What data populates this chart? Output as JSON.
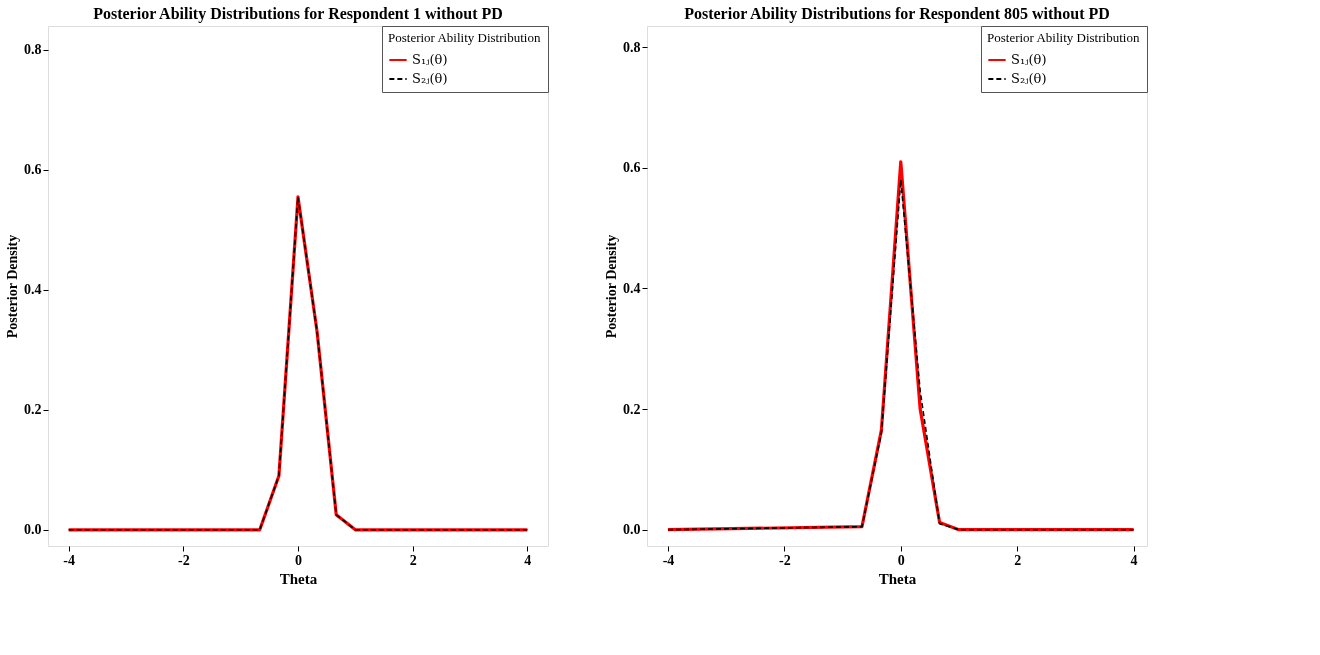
{
  "chart_data": [
    {
      "type": "line",
      "title": "Posterior Ability Distributions for Respondent 1 without PD",
      "xlabel": "Theta",
      "ylabel": "Posterior Density",
      "legend_title": "Posterior Ability Distribution",
      "legend": "top right",
      "grid": false,
      "x": [
        -4,
        -0.667,
        -0.333,
        0,
        0.333,
        0.667,
        1,
        4
      ],
      "series": [
        {
          "name": "S₁ⱼ(θ)",
          "color": "#ff0000",
          "line_style": "solid",
          "values": [
            0,
            0,
            0.09,
            0.555,
            0.33,
            0.025,
            0,
            0
          ]
        },
        {
          "name": "S₂ⱼ(θ)",
          "color": "#000000",
          "line_style": "dashed",
          "values": [
            0,
            0,
            0.09,
            0.555,
            0.33,
            0.025,
            0,
            0
          ]
        }
      ],
      "xlim": [
        -4.36,
        4.36
      ],
      "xticks": [
        -4,
        -2,
        0,
        2,
        4
      ],
      "ylim": [
        -0.027,
        0.84
      ],
      "yticks": [
        {
          "value": 0,
          "label": "0.0"
        },
        0.2,
        0.4,
        0.6,
        0.8
      ]
    },
    {
      "type": "line",
      "title": "Posterior Ability Distributions for Respondent 805 without PD",
      "xlabel": "Theta",
      "ylabel": "Posterior Density",
      "legend_title": "Posterior Ability Distribution",
      "legend": "top right",
      "grid": false,
      "x": [
        -4,
        -0.667,
        -0.333,
        0,
        0.333,
        0.667,
        1,
        4
      ],
      "series": [
        {
          "name": "S₁ⱼ(θ)",
          "color": "#ff0000",
          "line_style": "solid",
          "values": [
            0,
            0.005,
            0.165,
            0.61,
            0.2,
            0.012,
            0,
            0
          ]
        },
        {
          "name": "S₂ⱼ(θ)",
          "color": "#000000",
          "line_style": "dashed",
          "values": [
            0,
            0.005,
            0.16,
            0.58,
            0.23,
            0.01,
            0,
            0
          ]
        }
      ],
      "xlim": [
        -4.36,
        4.23
      ],
      "xticks": [
        -4,
        -2,
        0,
        2,
        4
      ],
      "ylim": [
        -0.027,
        0.835
      ],
      "yticks": [
        {
          "value": 0,
          "label": "0.0"
        },
        0.2,
        0.4,
        0.6,
        0.8
      ]
    }
  ]
}
